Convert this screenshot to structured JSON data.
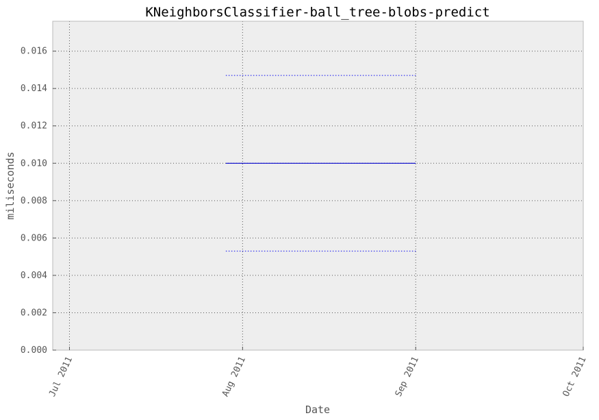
{
  "chart_data": {
    "type": "line",
    "title": "KNeighborsClassifier-ball_tree-blobs-predict",
    "xlabel": "Date",
    "ylabel": "miliseconds",
    "xlim": [
      "2011-06-28",
      "2011-10-01"
    ],
    "ylim": [
      0.0,
      0.0176
    ],
    "x_ticks": [
      {
        "date": "2011-07-01",
        "label": "Jul 2011"
      },
      {
        "date": "2011-08-01",
        "label": "Aug 2011"
      },
      {
        "date": "2011-09-01",
        "label": "Sep 2011"
      },
      {
        "date": "2011-10-01",
        "label": "Oct 2011"
      }
    ],
    "y_ticks": [
      {
        "value": 0.0,
        "label": "0.000"
      },
      {
        "value": 0.002,
        "label": "0.002"
      },
      {
        "value": 0.004,
        "label": "0.004"
      },
      {
        "value": 0.006,
        "label": "0.006"
      },
      {
        "value": 0.008,
        "label": "0.008"
      },
      {
        "value": 0.01,
        "label": "0.010"
      },
      {
        "value": 0.012,
        "label": "0.012"
      },
      {
        "value": 0.014,
        "label": "0.014"
      },
      {
        "value": 0.016,
        "label": "0.016"
      }
    ],
    "grid": true,
    "series": [
      {
        "style": "solid",
        "color": "#0000cc",
        "x": [
          "2011-07-29",
          "2011-09-01"
        ],
        "y": [
          0.01,
          0.01
        ]
      },
      {
        "style": "dotted",
        "color": "#3333ee",
        "x": [
          "2011-07-29",
          "2011-09-01"
        ],
        "y": [
          0.0147,
          0.0147
        ]
      },
      {
        "style": "dotted",
        "color": "#3333ee",
        "x": [
          "2011-07-29",
          "2011-09-01"
        ],
        "y": [
          0.0053,
          0.0053
        ]
      }
    ],
    "colors": {
      "plot_background": "#eeeeee",
      "frame": "#bbbbbb"
    }
  }
}
